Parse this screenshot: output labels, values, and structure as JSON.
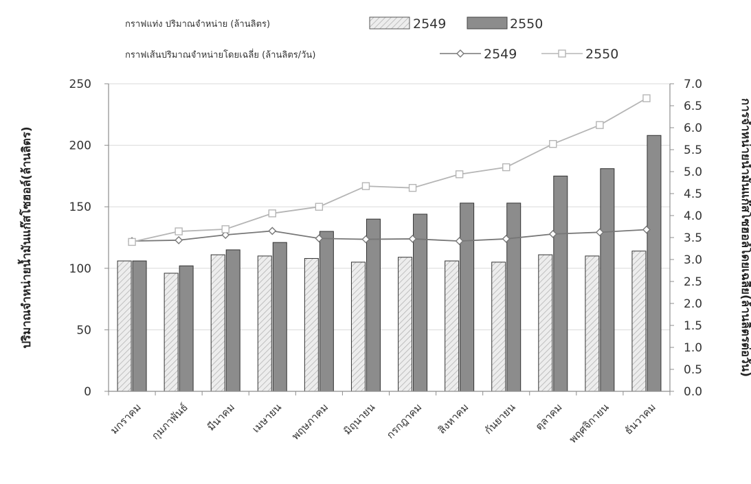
{
  "chart_data": {
    "type": "bar",
    "categories": [
      "มกราคม",
      "กุมภาพันธ์",
      "มีนาคม",
      "เมษายน",
      "พฤษภาคม",
      "มิถุนายน",
      "กรกฎาคม",
      "สิงหาคม",
      "กันยายน",
      "ตุลาคม",
      "พฤศจิกายน",
      "ธันวาคม"
    ],
    "legend": {
      "bar_group_label": "กราฟแท่ง ปริมาณจำหน่าย (ล้านลิตร)",
      "line_group_label": "กราฟเส้นปริมาณจำหน่ายโดยเฉลี่ย (ล้านลิตร/วัน)",
      "placement": "top"
    },
    "bar_series": [
      {
        "name": "2549",
        "values": [
          106,
          96,
          111,
          110,
          108,
          105,
          109,
          106,
          105,
          111,
          110,
          114
        ],
        "color": "#e6e6e6",
        "pattern": "hatch"
      },
      {
        "name": "2550",
        "values": [
          106,
          102,
          115,
          121,
          130,
          140,
          144,
          153,
          153,
          175,
          181,
          208
        ],
        "color": "#8c8c8c",
        "pattern": "solid"
      }
    ],
    "line_series": [
      {
        "name": "2549",
        "values": [
          3.42,
          3.44,
          3.56,
          3.65,
          3.48,
          3.46,
          3.47,
          3.42,
          3.47,
          3.58,
          3.62,
          3.68
        ],
        "color": "#777777",
        "marker": "diamond"
      },
      {
        "name": "2550",
        "values": [
          3.4,
          3.64,
          3.69,
          4.05,
          4.2,
          4.67,
          4.63,
          4.94,
          5.1,
          5.63,
          6.06,
          6.67
        ],
        "color": "#b5b5b5",
        "marker": "square"
      }
    ],
    "y_left": {
      "label": "ปริมาณจำหน่ายน้ำมันแก๊สโซฮอล์(ล้านลิตร)",
      "range": [
        0,
        250
      ],
      "ticks": [
        0,
        50,
        100,
        150,
        200,
        250
      ]
    },
    "y_right": {
      "label": "การจำหน่ายน้ำมันแก๊สโซฮอล์โดยเฉลี่ย(ล้านลิตรต่อวัน)",
      "range": [
        0,
        7
      ],
      "ticks": [
        "0.0",
        "0.5",
        "1.0",
        "1.5",
        "2.0",
        "2.5",
        "3.0",
        "3.5",
        "4.0",
        "4.5",
        "5.0",
        "5.5",
        "6.0",
        "6.5",
        "7.0"
      ]
    },
    "grid": "horizontal"
  }
}
